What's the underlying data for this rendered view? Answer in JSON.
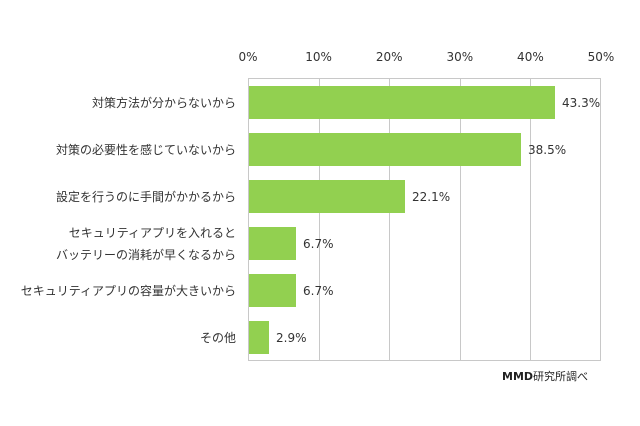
{
  "chart_data": {
    "type": "bar",
    "orientation": "horizontal",
    "title": "",
    "xlabel": "",
    "ylabel": "",
    "categories": [
      "対策方法が分からないから",
      "対策の必要性を感じていないから",
      "設定を行うのに手間がかかるから",
      "セキュリティアプリを入れると\nバッテリーの消耗が早くなるから",
      "セキュリティアプリの容量が大きいから",
      "その他"
    ],
    "values": [
      43.3,
      38.5,
      22.1,
      6.7,
      6.7,
      2.9
    ],
    "value_labels": [
      "43.3%",
      "38.5%",
      "22.1%",
      "6.7%",
      "6.7%",
      "2.9%"
    ],
    "xlim": [
      0,
      50
    ],
    "x_ticks": [
      "0%",
      "10%",
      "20%",
      "30%",
      "40%",
      "50%"
    ],
    "x_axis_position": "top",
    "grid": true,
    "legend": null,
    "bar_color": "#92d050",
    "annotations": [
      "MMD研究所調べ"
    ]
  },
  "categories_display": [
    {
      "lines": [
        "対策方法が分からないから"
      ]
    },
    {
      "lines": [
        "対策の必要性を感じていないから"
      ]
    },
    {
      "lines": [
        "設定を行うのに手間がかかるから"
      ]
    },
    {
      "lines": [
        "セキュリティアプリを入れると",
        "バッテリーの消耗が早くなるから"
      ]
    },
    {
      "lines": [
        "セキュリティアプリの容量が大きいから"
      ]
    },
    {
      "lines": [
        "その他"
      ]
    }
  ],
  "source": {
    "brand": "MMD",
    "suffix": "研究所調べ"
  },
  "colors": {
    "bar": "#92d050",
    "grid": "#c8c8c8",
    "text": "#333333"
  }
}
